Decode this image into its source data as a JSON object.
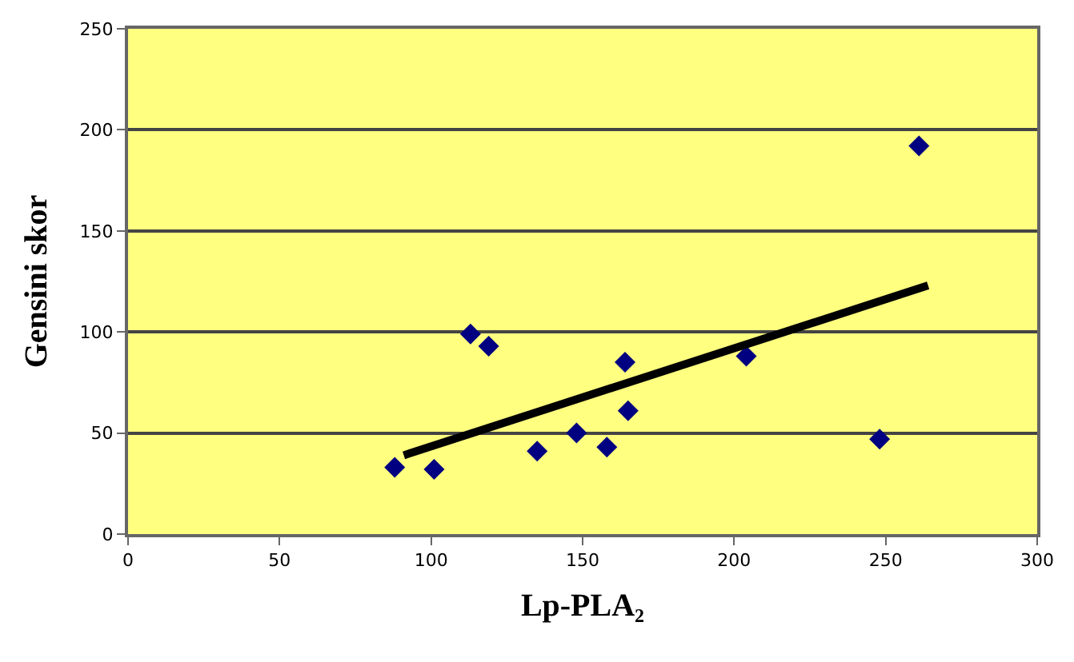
{
  "chart_data": {
    "type": "scatter",
    "xlabel": "Lp-PLA₂",
    "ylabel": "Gensini skor",
    "xlim": [
      0,
      300
    ],
    "xticks": [
      0,
      50,
      100,
      150,
      200,
      250,
      300
    ],
    "ylim": [
      0,
      250
    ],
    "yticks": [
      0,
      50,
      100,
      150,
      200,
      250
    ],
    "grid": "y",
    "marker": "diamond",
    "series": [
      {
        "color": "#000080",
        "x": [
          88,
          101,
          113,
          119,
          135,
          148,
          158,
          164,
          165,
          204,
          248,
          261
        ],
        "values": [
          33,
          32,
          99,
          93,
          41,
          50,
          43,
          85,
          61,
          88,
          47,
          192
        ]
      },
      {
        "type": "line",
        "color": "#000000",
        "marker": "none",
        "line_style": "solid",
        "x": [
          91,
          264
        ],
        "values": [
          39,
          123
        ]
      }
    ]
  }
}
